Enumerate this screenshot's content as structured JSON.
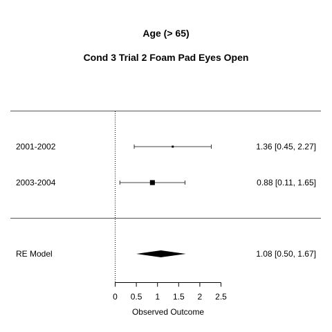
{
  "title": "Age (> 65)",
  "subtitle": "Cond 3 Trial 2 Foam Pad Eyes Open",
  "chart_data": {
    "type": "forest",
    "xlabel": "Observed Outcome",
    "xlim": [
      0,
      2.5
    ],
    "xticks": [
      "0",
      "0.5",
      "1",
      "1.5",
      "2",
      "2.5"
    ],
    "reference_line": 0,
    "studies": [
      {
        "label": "2001-2002",
        "estimate": 1.36,
        "lower": 0.45,
        "upper": 2.27,
        "text": "1.36 [0.45, 2.27]",
        "weight": 0.15
      },
      {
        "label": "2003-2004",
        "estimate": 0.88,
        "lower": 0.11,
        "upper": 1.65,
        "text": "0.88 [0.11, 1.65]",
        "weight": 0.85
      }
    ],
    "summary": {
      "label": "RE Model",
      "estimate": 1.08,
      "lower": 0.5,
      "upper": 1.67,
      "text": "1.08 [0.50, 1.67]"
    }
  }
}
